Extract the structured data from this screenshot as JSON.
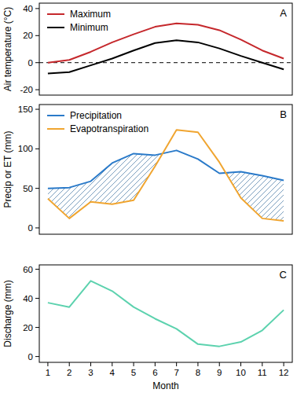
{
  "chart_data": [
    {
      "type": "line",
      "panel_label": "A",
      "ylabel": "Air temperature (°C)",
      "x": [
        1,
        2,
        3,
        4,
        5,
        6,
        7,
        8,
        9,
        10,
        11,
        12
      ],
      "xlim": [
        0.6,
        12.4
      ],
      "ylim": [
        -24,
        44
      ],
      "yticks": [
        -20,
        0,
        20,
        40
      ],
      "reference_line": 0,
      "legend": "top left",
      "tick_labels": "y",
      "series": [
        {
          "name": "Maximum",
          "color": "#c5282c",
          "values": [
            0,
            2,
            8,
            15,
            21,
            26.5,
            29,
            28,
            24,
            17,
            9,
            3
          ]
        },
        {
          "name": "Minimum",
          "color": "#000000",
          "values": [
            -8,
            -7,
            -2,
            3,
            9,
            14.5,
            16.5,
            15,
            10.5,
            5,
            0,
            -5
          ]
        }
      ]
    },
    {
      "type": "line",
      "panel_label": "B",
      "ylabel": "Precip or ET (mm)",
      "x": [
        1,
        2,
        3,
        4,
        5,
        6,
        7,
        8,
        9,
        10,
        11,
        12
      ],
      "xlim": [
        0.6,
        12.4
      ],
      "ylim": [
        -8,
        156
      ],
      "yticks": [
        0,
        50,
        100,
        150
      ],
      "legend": "top left",
      "tick_labels": "y",
      "series": [
        {
          "name": "Precipitation",
          "color": "#2a7ac9",
          "values": [
            50,
            51,
            59,
            82,
            94,
            92,
            98,
            87,
            69,
            71,
            66,
            60
          ]
        },
        {
          "name": "Evapotranspiration",
          "color": "#f0a530",
          "values": [
            37,
            12,
            33,
            30,
            35,
            78,
            124,
            121,
            83,
            38,
            12,
            9
          ]
        }
      ]
    },
    {
      "type": "line",
      "panel_label": "C",
      "ylabel": "Discharge (mm)",
      "xlabel": "Month",
      "x": [
        1,
        2,
        3,
        4,
        5,
        6,
        7,
        8,
        9,
        10,
        11,
        12
      ],
      "xlim": [
        0.6,
        12.4
      ],
      "xticks": [
        1,
        2,
        3,
        4,
        5,
        6,
        7,
        8,
        9,
        10,
        11,
        12
      ],
      "ylim": [
        -4,
        63
      ],
      "yticks": [
        0,
        20,
        40,
        60
      ],
      "series": [
        {
          "name": "Discharge",
          "color": "#5cd2ae",
          "values": [
            37,
            34,
            52,
            45,
            34,
            26,
            19,
            8.5,
            7,
            10,
            18,
            32
          ]
        }
      ]
    }
  ]
}
